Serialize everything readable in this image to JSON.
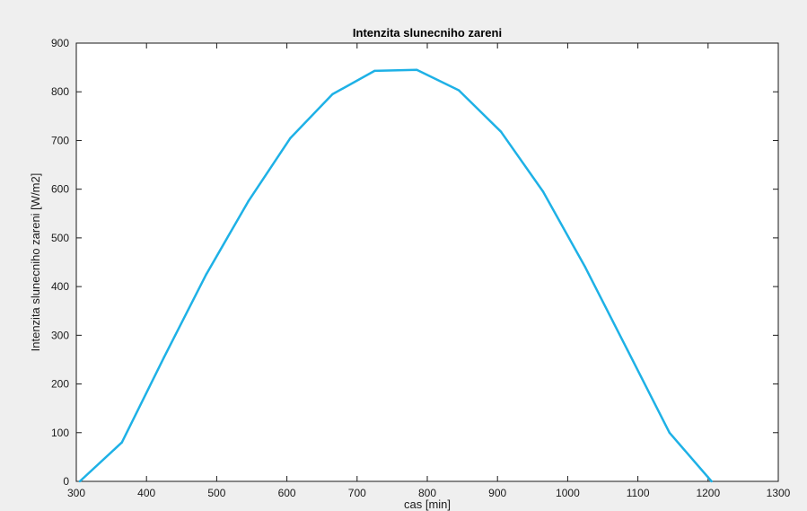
{
  "chart_data": {
    "type": "line",
    "title": "Intenzita slunecniho zareni",
    "xlabel": "cas [min]",
    "ylabel": "Intenzita slunecniho zareni [W/m2]",
    "xlim": [
      300,
      1300
    ],
    "ylim": [
      0,
      900
    ],
    "xticks": [
      300,
      400,
      500,
      600,
      700,
      800,
      900,
      1000,
      1100,
      1200,
      1300
    ],
    "yticks": [
      0,
      100,
      200,
      300,
      400,
      500,
      600,
      700,
      800,
      900
    ],
    "grid": false,
    "series": [
      {
        "color": "#1eb1e6",
        "x": [
          305,
          365,
          425,
          485,
          545,
          605,
          665,
          725,
          785,
          845,
          905,
          965,
          1025,
          1085,
          1145,
          1205
        ],
        "y": [
          0,
          80,
          255,
          425,
          575,
          705,
          795,
          843,
          845,
          803,
          718,
          595,
          440,
          270,
          100,
          0
        ]
      }
    ]
  }
}
